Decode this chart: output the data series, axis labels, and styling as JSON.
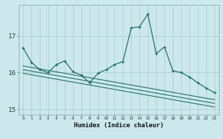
{
  "title": "",
  "xlabel": "Humidex (Indice chaleur)",
  "bg_color": "#cce8ec",
  "grid_color": "#aacdd4",
  "line_color": "#1a6e65",
  "x_values": [
    0,
    1,
    2,
    3,
    4,
    5,
    6,
    7,
    8,
    9,
    10,
    11,
    12,
    13,
    14,
    15,
    16,
    17,
    18,
    19,
    20,
    21,
    22,
    23
  ],
  "series1": [
    16.68,
    16.28,
    16.08,
    16.0,
    16.22,
    16.32,
    16.02,
    15.93,
    15.72,
    15.98,
    16.08,
    16.22,
    16.3,
    17.22,
    17.25,
    17.6,
    16.52,
    16.7,
    16.05,
    16.0,
    15.88,
    15.72,
    15.58,
    15.45
  ],
  "line2": [
    16.18,
    16.14,
    16.1,
    16.06,
    16.02,
    15.98,
    15.94,
    15.9,
    15.86,
    15.82,
    15.78,
    15.74,
    15.7,
    15.66,
    15.62,
    15.58,
    15.54,
    15.5,
    15.46,
    15.42,
    15.38,
    15.34,
    15.3,
    15.26
  ],
  "line3": [
    16.08,
    16.04,
    16.0,
    15.96,
    15.92,
    15.88,
    15.84,
    15.8,
    15.76,
    15.72,
    15.68,
    15.64,
    15.6,
    15.56,
    15.52,
    15.48,
    15.44,
    15.4,
    15.36,
    15.32,
    15.28,
    15.24,
    15.2,
    15.16
  ],
  "line4": [
    15.98,
    15.94,
    15.9,
    15.86,
    15.82,
    15.78,
    15.74,
    15.7,
    15.66,
    15.62,
    15.58,
    15.54,
    15.5,
    15.46,
    15.42,
    15.38,
    15.34,
    15.3,
    15.26,
    15.22,
    15.18,
    15.14,
    15.1,
    15.06
  ],
  "ylim": [
    14.85,
    17.85
  ],
  "yticks": [
    15,
    16,
    17
  ],
  "xlim": [
    -0.5,
    23.5
  ]
}
